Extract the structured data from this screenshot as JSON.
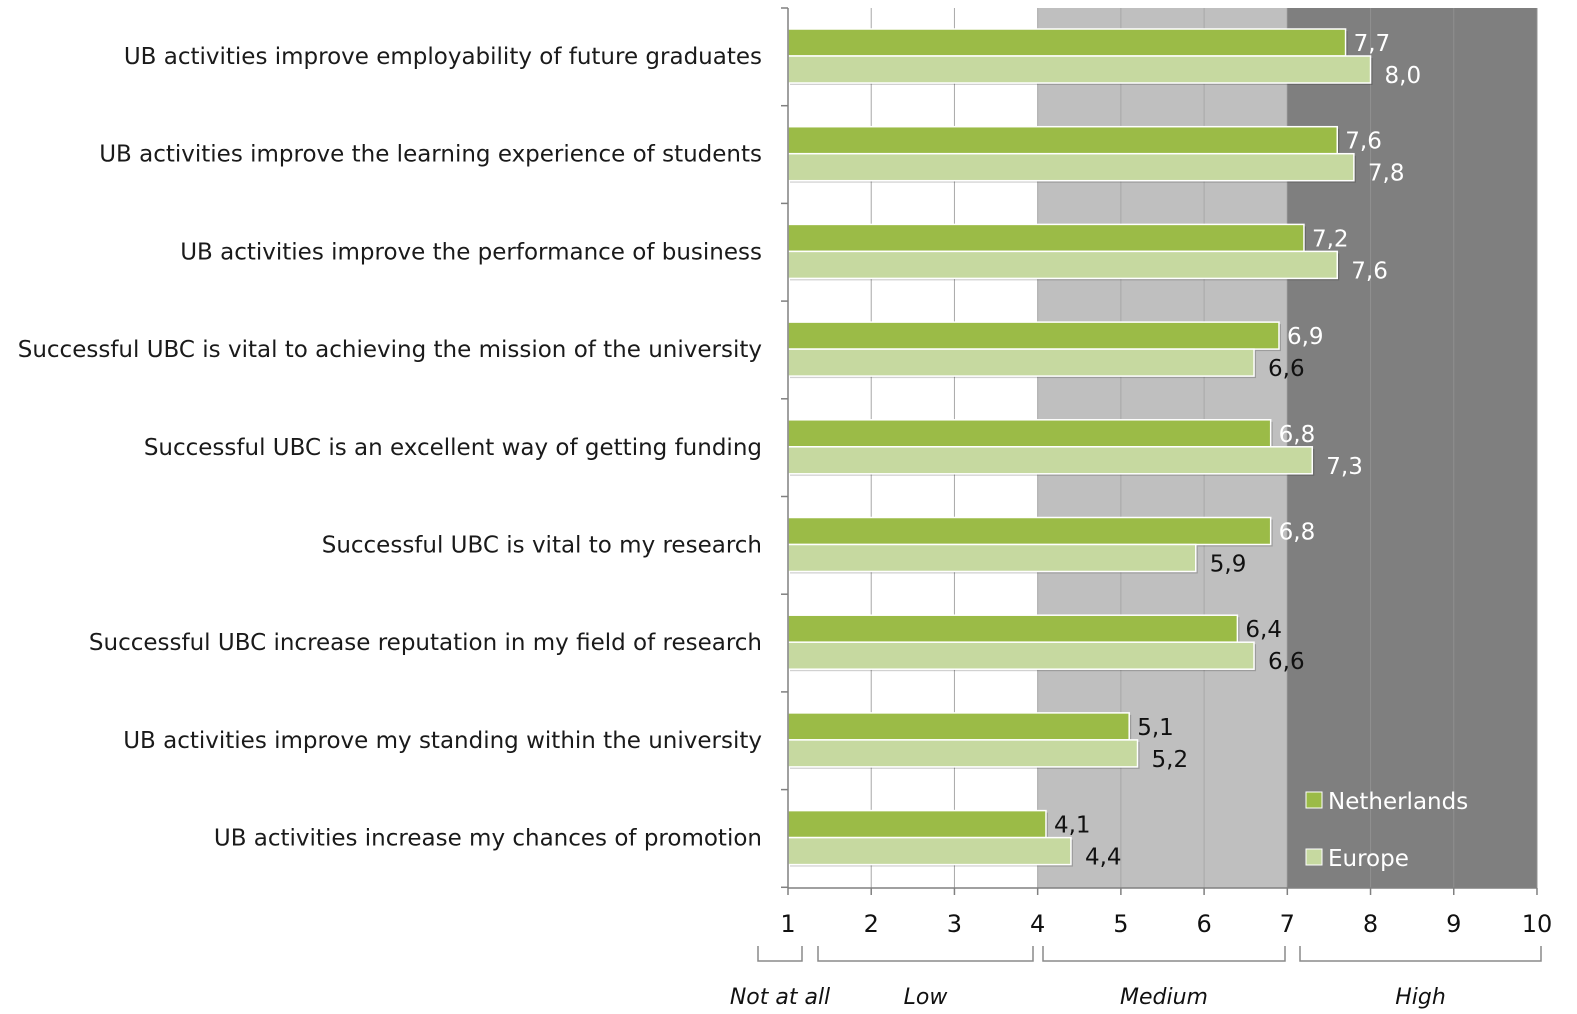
{
  "chart_data": {
    "type": "bar",
    "orientation": "horizontal",
    "categories": [
      "UB activities improve employability of future graduates",
      "UB activities improve the learning experience of students",
      "UB activities improve the performance of business",
      "Successful UBC is vital to achieving the mission of the university",
      "Successful UBC is an excellent way of getting funding",
      "Successful UBC is vital to my research",
      "Successful UBC increase reputation in my field of research",
      "UB activities improve my standing within the university",
      "UB activities increase my chances of promotion"
    ],
    "series": [
      {
        "name": "Netherlands",
        "color": "#9bbb47",
        "values": [
          7.7,
          7.6,
          7.2,
          6.9,
          6.8,
          6.8,
          6.4,
          5.1,
          4.1
        ],
        "labels": [
          "7,7",
          "7,6",
          "7,2",
          "6,9",
          "6,8",
          "6,8",
          "6,4",
          "5,1",
          "4,1"
        ]
      },
      {
        "name": "Europe",
        "color": "#c6d9a0",
        "values": [
          8.0,
          7.8,
          7.6,
          6.6,
          7.3,
          5.9,
          6.6,
          5.2,
          4.4
        ],
        "labels": [
          "8,0",
          "7,8",
          "7,6",
          "6,6",
          "7,3",
          "5,9",
          "6,6",
          "5,2",
          "4,4"
        ]
      }
    ],
    "xlim": [
      1,
      10
    ],
    "xticks": [
      "1",
      "2",
      "3",
      "4",
      "5",
      "6",
      "7",
      "8",
      "9",
      "10"
    ],
    "xlabel": "",
    "ylabel": "",
    "title": "",
    "grid": true,
    "legend_position": "bottom-right",
    "bands": [
      {
        "label": "Not at all",
        "from": 1,
        "to": 1.2
      },
      {
        "label": "Low",
        "from": 1.4,
        "to": 3.96
      },
      {
        "label": "Medium",
        "from": 4.06,
        "to": 6.98
      },
      {
        "label": "High",
        "from": 7.15,
        "to": 10
      }
    ],
    "shading": [
      {
        "from": 4,
        "to": 7,
        "color": "#bfbfbf"
      },
      {
        "from": 7,
        "to": 10,
        "color": "#7f7f7f"
      }
    ]
  }
}
